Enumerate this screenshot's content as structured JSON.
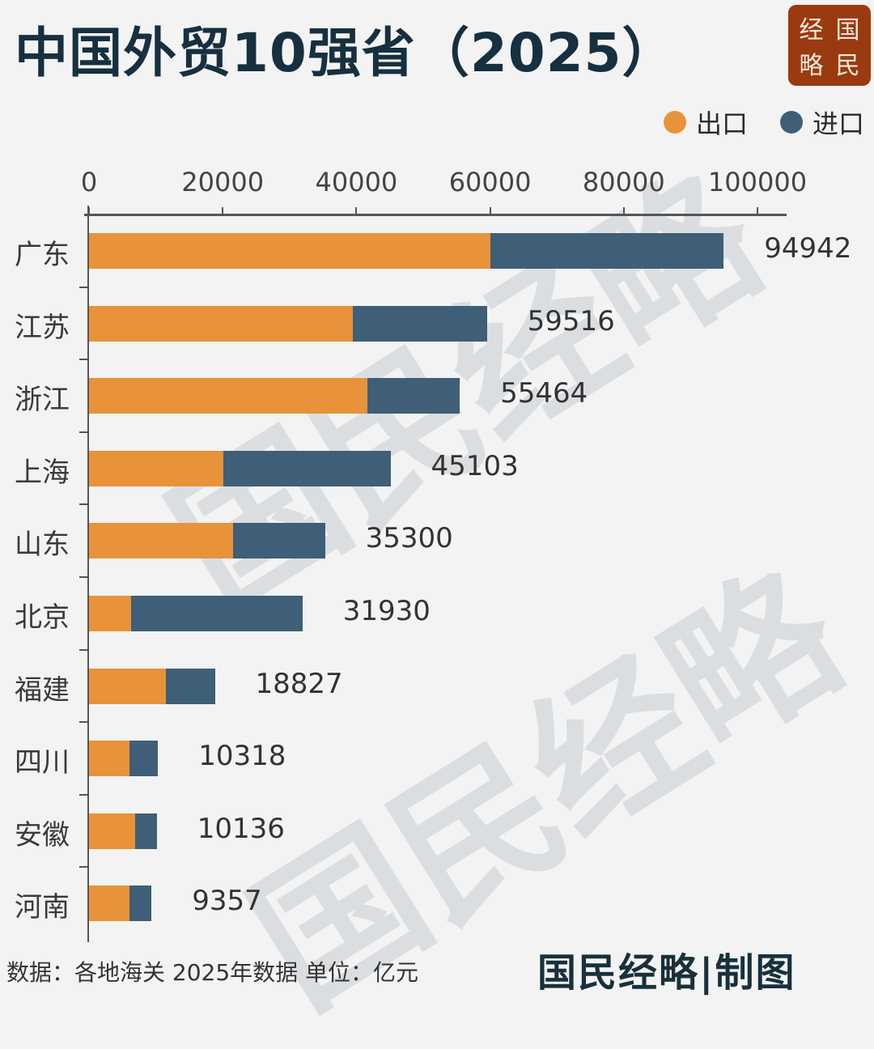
{
  "header": {
    "title": "中国外贸10强省（2025）",
    "seal": [
      "经",
      "国",
      "略",
      "民"
    ]
  },
  "legend": [
    {
      "label": "出口",
      "color": "#e8923a"
    },
    {
      "label": "进口",
      "color": "#3e5f77"
    }
  ],
  "axis": {
    "ticks": [
      "0",
      "20000",
      "40000",
      "60000",
      "80000",
      "100000"
    ]
  },
  "footer": {
    "source": "数据：各地海关 2025年数据 单位：亿元",
    "brand": "国民经略|制图"
  },
  "watermark": "国民经略",
  "chart_data": {
    "type": "bar",
    "orientation": "horizontal",
    "stacked": true,
    "title": "中国外贸10强省（2025）",
    "xlabel": "",
    "ylabel": "",
    "unit": "亿元",
    "xlim": [
      0,
      100000
    ],
    "xticks": [
      0,
      20000,
      40000,
      60000,
      80000,
      100000
    ],
    "legend_position": "top-right",
    "categories": [
      "广东",
      "江苏",
      "浙江",
      "上海",
      "山东",
      "北京",
      "福建",
      "四川",
      "安徽",
      "河南"
    ],
    "totals": [
      94942,
      59516,
      55464,
      45103,
      35300,
      31930,
      18827,
      10318,
      10136,
      9357
    ],
    "series": [
      {
        "name": "出口",
        "color": "#e8923a",
        "values": [
          60100,
          39500,
          41700,
          20100,
          21500,
          6300,
          11500,
          6000,
          6900,
          6100
        ]
      },
      {
        "name": "进口",
        "color": "#3e5f77",
        "values": [
          34842,
          20016,
          13764,
          25003,
          13800,
          25630,
          7327,
          4318,
          3236,
          3257
        ]
      }
    ],
    "source": "数据：各地海关 2025年数据 单位：亿元"
  }
}
